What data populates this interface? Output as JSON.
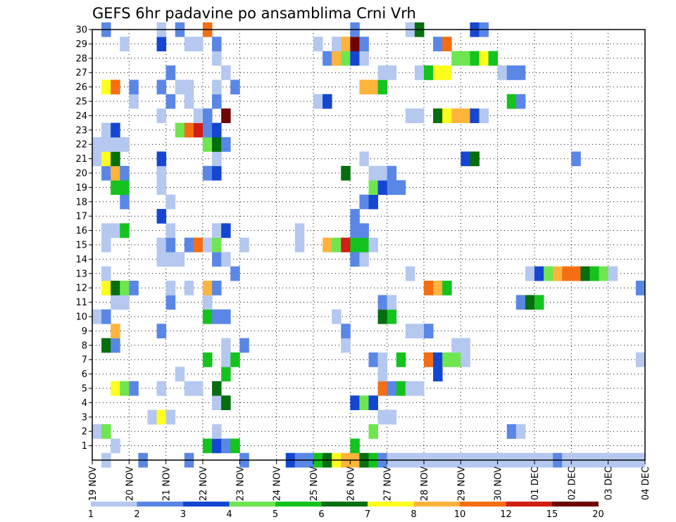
{
  "chart_data": {
    "type": "heatmap",
    "title": "GEFS 6hr padavine po ansamblima Crni Vrh",
    "xlabel": "",
    "ylabel": "",
    "y_ticks": [
      "1",
      "2",
      "3",
      "4",
      "5",
      "6",
      "7",
      "8",
      "9",
      "10",
      "11",
      "12",
      "13",
      "14",
      "15",
      "16",
      "17",
      "18",
      "19",
      "20",
      "21",
      "22",
      "23",
      "24",
      "25",
      "26",
      "27",
      "28",
      "29",
      "30"
    ],
    "x_ticks": [
      "19 NOV",
      "20 NOV",
      "21 NOV",
      "22 NOV",
      "23 NOV",
      "24 NOV",
      "25 NOV",
      "26 NOV",
      "27 NOV",
      "28 NOV",
      "29 NOV",
      "30 NOV",
      "01 DEC",
      "02 DEC",
      "03 DEC",
      "04 DEC"
    ],
    "x_time_steps_per_day": 4,
    "x_range": [
      0,
      60
    ],
    "y_range": [
      0,
      30
    ],
    "colorbar": {
      "labels": [
        "1",
        "2",
        "3",
        "4",
        "5",
        "6",
        "7",
        "8",
        "10",
        "12",
        "15",
        "20"
      ],
      "colors": [
        "#b4c8f0",
        "#5a87e6",
        "#1446d2",
        "#6ee650",
        "#14c31e",
        "#056e0f",
        "#ffff1e",
        "#ffb43c",
        "#f56e14",
        "#d21e14",
        "#6e0505"
      ]
    },
    "cells": [
      [
        0,
        1,
        1
      ],
      [
        0,
        5,
        2
      ],
      [
        0,
        10,
        2
      ],
      [
        0,
        16,
        2
      ],
      [
        0,
        21,
        3
      ],
      [
        0,
        22,
        2
      ],
      [
        0,
        23,
        2
      ],
      [
        0,
        24,
        5
      ],
      [
        0,
        25,
        6
      ],
      [
        0,
        26,
        7
      ],
      [
        0,
        27,
        8
      ],
      [
        0,
        28,
        8
      ],
      [
        0,
        29,
        6
      ],
      [
        0,
        30,
        5
      ],
      [
        0,
        31,
        2
      ],
      [
        0,
        32,
        1
      ],
      [
        0,
        33,
        1
      ],
      [
        0,
        34,
        1
      ],
      [
        0,
        35,
        1
      ],
      [
        0,
        36,
        1
      ],
      [
        0,
        37,
        1
      ],
      [
        0,
        38,
        1
      ],
      [
        0,
        39,
        1
      ],
      [
        0,
        40,
        1
      ],
      [
        0,
        41,
        1
      ],
      [
        0,
        42,
        1
      ],
      [
        0,
        43,
        1
      ],
      [
        0,
        44,
        1
      ],
      [
        0,
        45,
        1
      ],
      [
        0,
        46,
        1
      ],
      [
        0,
        47,
        1
      ],
      [
        0,
        48,
        1
      ],
      [
        0,
        49,
        1
      ],
      [
        0,
        50,
        2
      ],
      [
        0,
        51,
        1
      ],
      [
        0,
        52,
        1
      ],
      [
        0,
        53,
        1
      ],
      [
        0,
        54,
        1
      ],
      [
        0,
        55,
        1
      ],
      [
        0,
        56,
        1
      ],
      [
        0,
        57,
        1
      ],
      [
        0,
        58,
        1
      ],
      [
        0,
        59,
        1
      ],
      [
        1,
        2,
        1
      ],
      [
        1,
        12,
        5
      ],
      [
        1,
        13,
        3
      ],
      [
        1,
        14,
        2
      ],
      [
        1,
        15,
        5
      ],
      [
        1,
        28,
        5
      ],
      [
        2,
        0,
        1
      ],
      [
        2,
        1,
        4
      ],
      [
        2,
        13,
        1
      ],
      [
        2,
        30,
        4
      ],
      [
        2,
        45,
        2
      ],
      [
        2,
        46,
        1
      ],
      [
        3,
        6,
        1
      ],
      [
        3,
        7,
        7
      ],
      [
        3,
        8,
        1
      ],
      [
        3,
        31,
        1
      ],
      [
        3,
        32,
        1
      ],
      [
        4,
        13,
        1
      ],
      [
        4,
        14,
        6
      ],
      [
        4,
        28,
        3
      ],
      [
        4,
        29,
        4
      ],
      [
        4,
        30,
        3
      ],
      [
        5,
        2,
        7
      ],
      [
        5,
        3,
        4
      ],
      [
        5,
        4,
        2
      ],
      [
        5,
        7,
        1
      ],
      [
        5,
        10,
        1
      ],
      [
        5,
        11,
        1
      ],
      [
        5,
        13,
        6
      ],
      [
        5,
        31,
        9
      ],
      [
        5,
        32,
        2
      ],
      [
        5,
        33,
        5
      ],
      [
        5,
        34,
        1
      ],
      [
        5,
        35,
        1
      ],
      [
        6,
        9,
        1
      ],
      [
        6,
        14,
        5
      ],
      [
        6,
        31,
        1
      ],
      [
        6,
        37,
        3
      ],
      [
        7,
        12,
        5
      ],
      [
        7,
        14,
        1
      ],
      [
        7,
        15,
        5
      ],
      [
        7,
        30,
        2
      ],
      [
        7,
        31,
        1
      ],
      [
        7,
        33,
        5
      ],
      [
        7,
        36,
        9
      ],
      [
        7,
        37,
        3
      ],
      [
        7,
        38,
        4
      ],
      [
        7,
        39,
        4
      ],
      [
        7,
        40,
        1
      ],
      [
        7,
        59,
        1
      ],
      [
        8,
        1,
        6
      ],
      [
        8,
        2,
        2
      ],
      [
        8,
        14,
        1
      ],
      [
        8,
        16,
        2
      ],
      [
        8,
        27,
        1
      ],
      [
        8,
        39,
        1
      ],
      [
        8,
        40,
        1
      ],
      [
        9,
        2,
        8
      ],
      [
        9,
        7,
        2
      ],
      [
        9,
        27,
        2
      ],
      [
        9,
        34,
        1
      ],
      [
        9,
        35,
        1
      ],
      [
        9,
        36,
        2
      ],
      [
        10,
        0,
        1
      ],
      [
        10,
        1,
        2
      ],
      [
        10,
        12,
        5
      ],
      [
        10,
        13,
        2
      ],
      [
        10,
        14,
        2
      ],
      [
        10,
        26,
        1
      ],
      [
        10,
        31,
        6
      ],
      [
        10,
        32,
        5
      ],
      [
        11,
        2,
        1
      ],
      [
        11,
        3,
        1
      ],
      [
        11,
        8,
        2
      ],
      [
        11,
        12,
        1
      ],
      [
        11,
        31,
        2
      ],
      [
        11,
        32,
        1
      ],
      [
        11,
        46,
        2
      ],
      [
        11,
        47,
        6
      ],
      [
        11,
        48,
        5
      ],
      [
        12,
        1,
        7
      ],
      [
        12,
        2,
        6
      ],
      [
        12,
        3,
        4
      ],
      [
        12,
        4,
        2
      ],
      [
        12,
        8,
        1
      ],
      [
        12,
        10,
        1
      ],
      [
        12,
        12,
        8
      ],
      [
        12,
        13,
        2
      ],
      [
        12,
        36,
        9
      ],
      [
        12,
        37,
        8
      ],
      [
        12,
        38,
        5
      ],
      [
        12,
        59,
        2
      ],
      [
        13,
        1,
        1
      ],
      [
        13,
        15,
        2
      ],
      [
        13,
        34,
        1
      ],
      [
        13,
        47,
        1
      ],
      [
        13,
        48,
        3
      ],
      [
        13,
        49,
        4
      ],
      [
        13,
        50,
        8
      ],
      [
        13,
        51,
        9
      ],
      [
        13,
        52,
        9
      ],
      [
        13,
        53,
        6
      ],
      [
        13,
        54,
        5
      ],
      [
        13,
        55,
        4
      ],
      [
        13,
        56,
        1
      ],
      [
        14,
        7,
        1
      ],
      [
        14,
        8,
        1
      ],
      [
        14,
        9,
        1
      ],
      [
        14,
        13,
        2
      ],
      [
        14,
        14,
        1
      ],
      [
        14,
        28,
        2
      ],
      [
        14,
        29,
        1
      ],
      [
        15,
        1,
        1
      ],
      [
        15,
        7,
        1
      ],
      [
        15,
        8,
        2
      ],
      [
        15,
        10,
        2
      ],
      [
        15,
        11,
        9
      ],
      [
        15,
        12,
        1
      ],
      [
        15,
        13,
        4
      ],
      [
        15,
        16,
        1
      ],
      [
        15,
        22,
        1
      ],
      [
        15,
        25,
        8
      ],
      [
        15,
        26,
        4
      ],
      [
        15,
        27,
        10
      ],
      [
        15,
        28,
        5
      ],
      [
        15,
        29,
        5
      ],
      [
        15,
        30,
        1
      ],
      [
        16,
        1,
        1
      ],
      [
        16,
        2,
        1
      ],
      [
        16,
        3,
        5
      ],
      [
        16,
        8,
        1
      ],
      [
        16,
        13,
        1
      ],
      [
        16,
        14,
        3
      ],
      [
        16,
        22,
        1
      ],
      [
        16,
        28,
        2
      ],
      [
        16,
        29,
        2
      ],
      [
        17,
        7,
        3
      ],
      [
        17,
        28,
        2
      ],
      [
        18,
        3,
        2
      ],
      [
        18,
        8,
        1
      ],
      [
        18,
        29,
        2
      ],
      [
        18,
        30,
        3
      ],
      [
        19,
        2,
        5
      ],
      [
        19,
        3,
        5
      ],
      [
        19,
        7,
        1
      ],
      [
        19,
        30,
        4
      ],
      [
        19,
        31,
        3
      ],
      [
        19,
        32,
        2
      ],
      [
        19,
        33,
        2
      ],
      [
        20,
        1,
        2
      ],
      [
        20,
        2,
        8
      ],
      [
        20,
        3,
        2
      ],
      [
        20,
        7,
        1
      ],
      [
        20,
        12,
        2
      ],
      [
        20,
        13,
        3
      ],
      [
        20,
        27,
        6
      ],
      [
        20,
        30,
        1
      ],
      [
        20,
        31,
        1
      ],
      [
        20,
        32,
        2
      ],
      [
        21,
        0,
        1
      ],
      [
        21,
        1,
        7
      ],
      [
        21,
        2,
        6
      ],
      [
        21,
        7,
        3
      ],
      [
        21,
        13,
        1
      ],
      [
        21,
        29,
        1
      ],
      [
        21,
        40,
        3
      ],
      [
        21,
        41,
        6
      ],
      [
        21,
        52,
        2
      ],
      [
        22,
        0,
        1
      ],
      [
        22,
        1,
        1
      ],
      [
        22,
        2,
        1
      ],
      [
        22,
        3,
        1
      ],
      [
        22,
        12,
        4
      ],
      [
        22,
        13,
        6
      ],
      [
        22,
        14,
        2
      ],
      [
        23,
        1,
        1
      ],
      [
        23,
        2,
        3
      ],
      [
        23,
        9,
        4
      ],
      [
        23,
        10,
        9
      ],
      [
        23,
        11,
        10
      ],
      [
        23,
        12,
        2
      ],
      [
        23,
        13,
        3
      ],
      [
        24,
        7,
        1
      ],
      [
        24,
        11,
        1
      ],
      [
        24,
        12,
        2
      ],
      [
        24,
        14,
        11
      ],
      [
        24,
        34,
        1
      ],
      [
        24,
        35,
        1
      ],
      [
        24,
        37,
        6
      ],
      [
        24,
        38,
        7
      ],
      [
        24,
        39,
        8
      ],
      [
        24,
        40,
        8
      ],
      [
        24,
        41,
        3
      ],
      [
        24,
        42,
        1
      ],
      [
        25,
        4,
        1
      ],
      [
        25,
        8,
        2
      ],
      [
        25,
        10,
        1
      ],
      [
        25,
        13,
        2
      ],
      [
        25,
        24,
        1
      ],
      [
        25,
        25,
        3
      ],
      [
        25,
        45,
        5
      ],
      [
        25,
        46,
        2
      ],
      [
        26,
        1,
        7
      ],
      [
        26,
        2,
        9
      ],
      [
        26,
        4,
        2
      ],
      [
        26,
        7,
        2
      ],
      [
        26,
        9,
        1
      ],
      [
        26,
        10,
        1
      ],
      [
        26,
        13,
        1
      ],
      [
        26,
        15,
        2
      ],
      [
        26,
        29,
        8
      ],
      [
        26,
        30,
        8
      ],
      [
        26,
        31,
        5
      ],
      [
        27,
        8,
        2
      ],
      [
        27,
        14,
        1
      ],
      [
        27,
        31,
        1
      ],
      [
        27,
        32,
        1
      ],
      [
        27,
        35,
        1
      ],
      [
        27,
        36,
        5
      ],
      [
        27,
        37,
        7
      ],
      [
        27,
        38,
        7
      ],
      [
        27,
        44,
        1
      ],
      [
        27,
        45,
        2
      ],
      [
        27,
        46,
        2
      ],
      [
        28,
        13,
        1
      ],
      [
        28,
        25,
        2
      ],
      [
        28,
        26,
        8
      ],
      [
        28,
        27,
        4
      ],
      [
        28,
        28,
        3
      ],
      [
        28,
        29,
        1
      ],
      [
        28,
        39,
        4
      ],
      [
        28,
        40,
        4
      ],
      [
        28,
        41,
        5
      ],
      [
        28,
        42,
        7
      ],
      [
        28,
        43,
        5
      ],
      [
        29,
        3,
        1
      ],
      [
        29,
        7,
        3
      ],
      [
        29,
        10,
        1
      ],
      [
        29,
        11,
        1
      ],
      [
        29,
        13,
        2
      ],
      [
        29,
        24,
        1
      ],
      [
        29,
        26,
        1
      ],
      [
        29,
        27,
        8
      ],
      [
        29,
        28,
        11
      ],
      [
        29,
        29,
        2
      ],
      [
        29,
        37,
        2
      ],
      [
        29,
        38,
        9
      ],
      [
        30,
        1,
        2
      ],
      [
        30,
        7,
        1
      ],
      [
        30,
        9,
        2
      ],
      [
        30,
        12,
        9
      ],
      [
        30,
        28,
        2
      ],
      [
        30,
        34,
        1
      ],
      [
        30,
        35,
        6
      ],
      [
        30,
        41,
        3
      ],
      [
        30,
        42,
        2
      ]
    ]
  }
}
